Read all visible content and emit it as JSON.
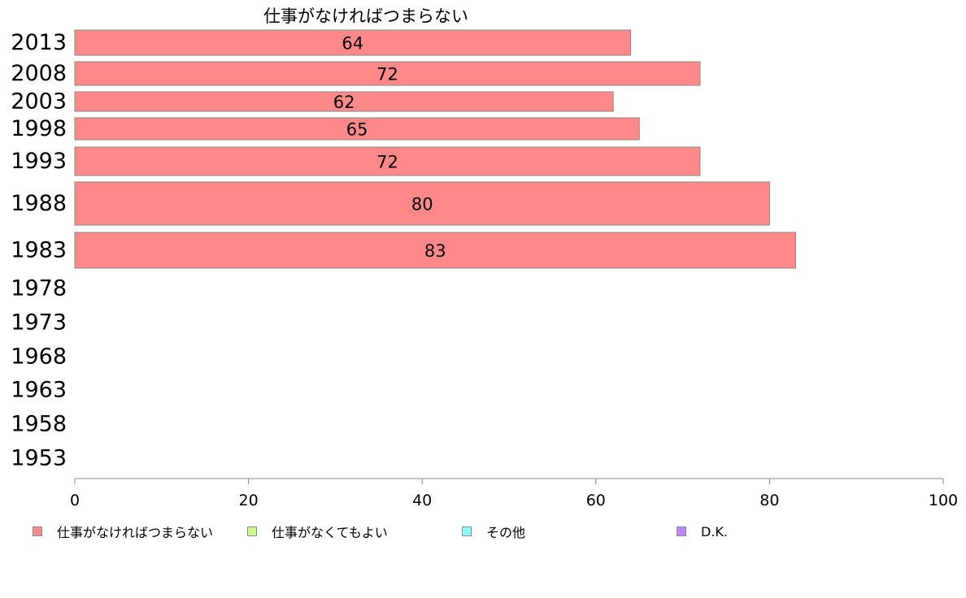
{
  "chart_data": {
    "type": "bar",
    "orientation": "horizontal",
    "title": "仕事がなければつまらない",
    "categories": [
      "2013",
      "2008",
      "2003",
      "1998",
      "1993",
      "1988",
      "1983",
      "1978",
      "1973",
      "1968",
      "1963",
      "1958",
      "1953"
    ],
    "series": [
      {
        "name": "仕事がなければつまらない",
        "color": "#ff8888",
        "values": [
          64,
          72,
          62,
          65,
          72,
          80,
          83,
          null,
          null,
          null,
          null,
          null,
          null
        ]
      },
      {
        "name": "仕事がなくてもよい",
        "color": "#ccff88",
        "values": [
          null,
          null,
          null,
          null,
          null,
          null,
          null,
          null,
          null,
          null,
          null,
          null,
          null
        ]
      },
      {
        "name": "その他",
        "color": "#88ffff",
        "values": [
          null,
          null,
          null,
          null,
          null,
          null,
          null,
          null,
          null,
          null,
          null,
          null,
          null
        ]
      },
      {
        "name": "D.K.",
        "color": "#bb88ff",
        "values": [
          null,
          null,
          null,
          null,
          null,
          null,
          null,
          null,
          null,
          null,
          null,
          null,
          null
        ]
      }
    ],
    "xlim": [
      0,
      100
    ],
    "xticks": [
      0,
      20,
      40,
      60,
      80,
      100
    ],
    "grid": false,
    "legend_position": "bottom"
  }
}
